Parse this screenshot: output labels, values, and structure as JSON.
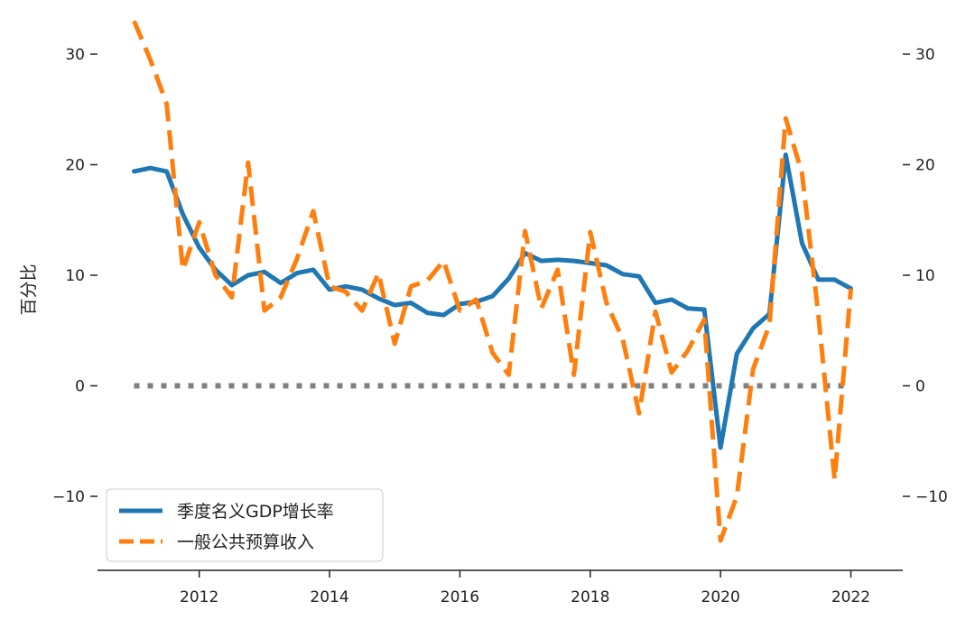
{
  "chart_data": {
    "type": "line",
    "ylabel": "百分比",
    "xlabel": "",
    "ylim": [
      -16.5,
      34.5
    ],
    "xlim": [
      2010.6,
      2023.0
    ],
    "x_ticks": [
      2012,
      2014,
      2016,
      2018,
      2020,
      2022
    ],
    "x_tick_labels": [
      "2012",
      "2014",
      "2016",
      "2018",
      "2020",
      "2022"
    ],
    "y_ticks": [
      -10,
      0,
      10,
      20,
      30
    ],
    "y_tick_labels_left": [
      "−10",
      "0",
      "10",
      "20",
      "30"
    ],
    "y_tick_labels_right": [
      "−10",
      "0",
      "10",
      "20",
      "30"
    ],
    "reference_line": {
      "y": 0,
      "style": "dotted",
      "color": "#808080"
    },
    "legend": {
      "position": "bottom-left"
    },
    "colors": {
      "gdp": "#1f77b4",
      "revenue": "#ff7f0e",
      "zero_line": "#808080",
      "axis": "#222222"
    },
    "series": [
      {
        "name": "季度名义GDP增长率",
        "style": "solid",
        "x": [
          "2011Q1",
          "2011Q2",
          "2011Q3",
          "2011Q4",
          "2012Q1",
          "2012Q2",
          "2012Q3",
          "2012Q4",
          "2013Q1",
          "2013Q2",
          "2013Q3",
          "2013Q4",
          "2014Q1",
          "2014Q2",
          "2014Q3",
          "2014Q4",
          "2015Q1",
          "2015Q2",
          "2015Q3",
          "2015Q4",
          "2016Q1",
          "2016Q2",
          "2016Q3",
          "2016Q4",
          "2017Q1",
          "2017Q2",
          "2017Q3",
          "2017Q4",
          "2018Q1",
          "2018Q2",
          "2018Q3",
          "2018Q4",
          "2019Q1",
          "2019Q2",
          "2019Q3",
          "2019Q4",
          "2020Q1",
          "2020Q2",
          "2020Q3",
          "2020Q4",
          "2021Q1",
          "2021Q2",
          "2021Q3",
          "2021Q4",
          "2022Q1"
        ],
        "values": [
          19.4,
          19.7,
          19.4,
          15.5,
          12.5,
          10.5,
          9.1,
          10.0,
          10.3,
          9.3,
          10.2,
          10.5,
          8.7,
          9.0,
          8.7,
          7.9,
          7.3,
          7.5,
          6.6,
          6.4,
          7.4,
          7.6,
          8.1,
          9.7,
          12.0,
          11.3,
          11.4,
          11.3,
          11.1,
          10.9,
          10.1,
          9.9,
          7.5,
          7.8,
          7.0,
          6.9,
          -5.6,
          2.9,
          5.2,
          6.5,
          20.9,
          12.9,
          9.6,
          9.6,
          8.8
        ]
      },
      {
        "name": "一般公共预算收入",
        "style": "dashed",
        "x": [
          "2011Q1",
          "2011Q2",
          "2011Q3",
          "2011Q4",
          "2012Q1",
          "2012Q2",
          "2012Q3",
          "2012Q4",
          "2013Q1",
          "2013Q2",
          "2013Q3",
          "2013Q4",
          "2014Q1",
          "2014Q2",
          "2014Q3",
          "2014Q4",
          "2015Q1",
          "2015Q2",
          "2015Q3",
          "2015Q4",
          "2016Q1",
          "2016Q2",
          "2016Q3",
          "2016Q4",
          "2017Q1",
          "2017Q2",
          "2017Q3",
          "2017Q4",
          "2018Q1",
          "2018Q2",
          "2018Q3",
          "2018Q4",
          "2019Q1",
          "2019Q2",
          "2019Q3",
          "2019Q4",
          "2020Q1",
          "2020Q2",
          "2020Q3",
          "2020Q4",
          "2021Q1",
          "2021Q2",
          "2021Q3",
          "2021Q4",
          "2022Q1"
        ],
        "values": [
          33.0,
          29.5,
          25.5,
          10.5,
          14.8,
          10.0,
          8.0,
          20.2,
          6.8,
          8.0,
          11.5,
          15.8,
          9.0,
          8.5,
          6.8,
          10.2,
          3.8,
          9.0,
          9.5,
          11.3,
          6.8,
          7.8,
          3.0,
          1.0,
          14.0,
          7.0,
          10.5,
          1.0,
          13.9,
          7.5,
          4.2,
          -2.5,
          6.7,
          1.2,
          3.2,
          6.0,
          -14.0,
          -10.0,
          1.5,
          5.5,
          24.2,
          19.2,
          6.5,
          -8.5,
          8.8
        ]
      }
    ]
  }
}
